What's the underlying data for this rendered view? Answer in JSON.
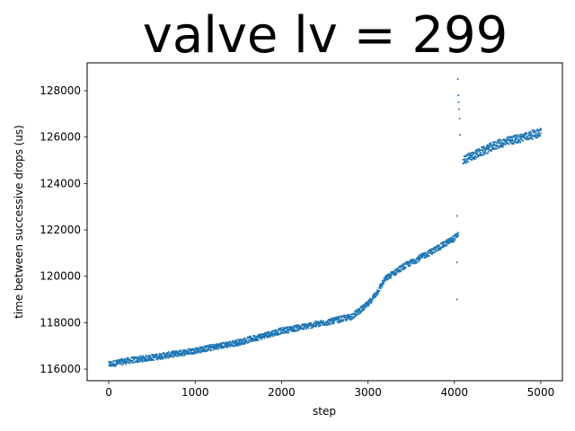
{
  "chart_data": {
    "type": "scatter",
    "title": "valve lv = 299",
    "xlabel": "step",
    "ylabel": "time between successive drops (us)",
    "xlim": [
      -250,
      5250
    ],
    "ylim": [
      115500,
      129200
    ],
    "x_ticks": [
      0,
      1000,
      2000,
      3000,
      4000,
      5000
    ],
    "y_ticks": [
      116000,
      118000,
      120000,
      122000,
      124000,
      126000,
      128000
    ],
    "grid": false,
    "legend": "none",
    "point_color": "#1f77b4",
    "series": [
      {
        "points_per_step": 1,
        "anchors_x": [
          0,
          200,
          500,
          1000,
          1500,
          2000,
          2500,
          2800,
          3000,
          3100,
          3200,
          3400,
          3600,
          3800,
          4000,
          4040
        ],
        "anchors_y": [
          116200,
          116350,
          116500,
          116800,
          117150,
          117650,
          118000,
          118250,
          118800,
          119300,
          119900,
          120400,
          120800,
          121200,
          121650,
          121800
        ],
        "segment_b_anchors_x": [
          4100,
          4300,
          4500,
          4700,
          5000
        ],
        "segment_b_anchors_y": [
          125000,
          125350,
          125700,
          125900,
          126200
        ],
        "outliers": [
          {
            "x": 4030,
            "y": 122600
          },
          {
            "x": 4030,
            "y": 120600
          },
          {
            "x": 4030,
            "y": 119000
          },
          {
            "x": 4040,
            "y": 128500
          },
          {
            "x": 4045,
            "y": 127800
          },
          {
            "x": 4050,
            "y": 127500
          },
          {
            "x": 4055,
            "y": 127200
          },
          {
            "x": 4060,
            "y": 126800
          },
          {
            "x": 4065,
            "y": 126100
          }
        ]
      }
    ]
  }
}
